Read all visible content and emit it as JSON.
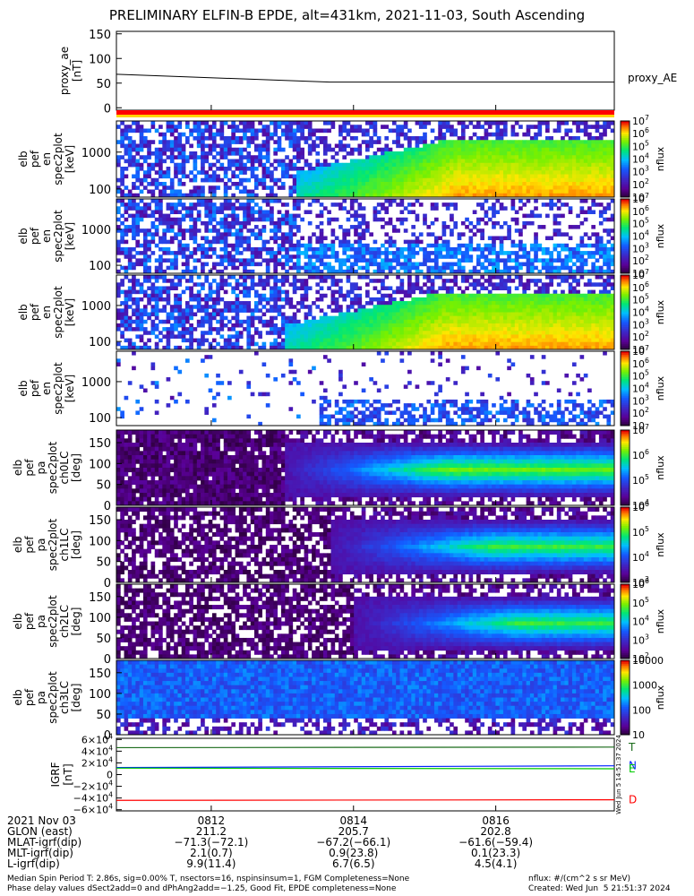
{
  "title": "PRELIMINARY ELFIN-B EPDE, alt=431km, 2021-11-03, South Ascending",
  "colors": {
    "axis": "#000000",
    "bar_red": "#ff0000",
    "bar_yellow": "#ffd400",
    "igrf_T": "#1a6b1a",
    "igrf_N": "#0022ff",
    "igrf_E": "#00cc00",
    "igrf_D": "#ff0000"
  },
  "time_axis": {
    "start": "08:10:40",
    "end": "08:17:40",
    "ticks": [
      "0812",
      "0814",
      "0816"
    ],
    "tick_times": [
      "08:12",
      "08:14",
      "08:16"
    ]
  },
  "chart_data": [
    {
      "type": "line",
      "panel": "proxy_ae",
      "ylabel": [
        "proxy_ae",
        "[nT]"
      ],
      "yticks": [
        "150",
        "100",
        "50",
        "0"
      ],
      "ylim": [
        -5,
        155
      ],
      "series": [
        {
          "name": "proxy_AE",
          "x": [
            "08:10:40",
            "08:13:40",
            "08:17:40"
          ],
          "y": [
            68,
            52,
            52
          ]
        }
      ]
    },
    {
      "type": "heatmap",
      "panel": "elb pef en spec2plot",
      "ylabel": [
        "elb",
        "pef",
        "en",
        "spec2plot",
        "[keV]"
      ],
      "yscale": "log",
      "ylim": [
        60,
        7000
      ],
      "yticks": [
        "1000",
        "100"
      ],
      "colorbar": {
        "label": "nflux",
        "range": [
          10,
          10000000
        ],
        "ticks": [
          "10",
          "10^2",
          "10^3",
          "10^4",
          "10^5",
          "10^6",
          "10^7"
        ]
      },
      "onset": "08:13:10",
      "profile": "full"
    },
    {
      "type": "heatmap",
      "panel": "elb pef en spec2plot (2)",
      "ylabel": [
        "elb",
        "pef",
        "en",
        "spec2plot",
        "[keV]"
      ],
      "yscale": "log",
      "ylim": [
        60,
        7000
      ],
      "yticks": [
        "1000",
        "100"
      ],
      "colorbar": {
        "label": "nflux",
        "range": [
          10,
          10000000
        ],
        "ticks": [
          "10",
          "10^2",
          "10^3",
          "10^4",
          "10^5",
          "10^6",
          "10^7"
        ]
      },
      "onset": "08:13:10",
      "profile": "weak"
    },
    {
      "type": "heatmap",
      "panel": "elb pef en spec2plot (3)",
      "ylabel": [
        "elb",
        "pef",
        "en",
        "spec2plot",
        "[keV]"
      ],
      "yscale": "log",
      "ylim": [
        60,
        7000
      ],
      "yticks": [
        "1000",
        "100"
      ],
      "colorbar": {
        "label": "nflux",
        "range": [
          10,
          10000000
        ],
        "ticks": [
          "10",
          "10^2",
          "10^3",
          "10^4",
          "10^5",
          "10^6",
          "10^7"
        ]
      },
      "onset": "08:13:00",
      "profile": "full"
    },
    {
      "type": "heatmap",
      "panel": "elb pef en spec2plot (4)",
      "ylabel": [
        "elb",
        "pef",
        "en",
        "spec2plot",
        "[keV]"
      ],
      "yscale": "log",
      "ylim": [
        60,
        7000
      ],
      "yticks": [
        "1000",
        "100"
      ],
      "colorbar": {
        "label": "nflux",
        "range": [
          10,
          10000000
        ],
        "ticks": [
          "10",
          "10^2",
          "10^3",
          "10^4",
          "10^5",
          "10^6",
          "10^7"
        ]
      },
      "onset": "08:13:30",
      "profile": "sparse"
    },
    {
      "type": "heatmap",
      "panel": "elb pef pa spec2plot ch0LC",
      "ylabel": [
        "elb",
        "pef",
        "pa",
        "spec2plot",
        "ch0LC",
        "[deg]"
      ],
      "ylim": [
        0,
        180
      ],
      "yticks": [
        "150",
        "100",
        "50",
        "0"
      ],
      "colorbar": {
        "label": "nflux",
        "range": [
          10000,
          10000000
        ],
        "ticks": [
          "10^4",
          "10^5",
          "10^6",
          "10^7"
        ]
      },
      "onset": "08:13:00",
      "profile": "pa_strong"
    },
    {
      "type": "heatmap",
      "panel": "elb pef pa spec2plot ch1LC",
      "ylabel": [
        "elb",
        "pef",
        "pa",
        "spec2plot",
        "ch1LC",
        "[deg]"
      ],
      "ylim": [
        0,
        180
      ],
      "yticks": [
        "150",
        "100",
        "50",
        "0"
      ],
      "colorbar": {
        "label": "nflux",
        "range": [
          1000,
          1000000
        ],
        "ticks": [
          "10^3",
          "10^4",
          "10^5",
          "10^6"
        ]
      },
      "onset": "08:13:40",
      "profile": "pa_mid"
    },
    {
      "type": "heatmap",
      "panel": "elb pef pa spec2plot ch2LC",
      "ylabel": [
        "elb",
        "pef",
        "pa",
        "spec2plot",
        "ch2LC",
        "[deg]"
      ],
      "ylim": [
        0,
        180
      ],
      "yticks": [
        "150",
        "100",
        "50",
        "0"
      ],
      "colorbar": {
        "label": "nflux",
        "range": [
          100,
          1000000
        ],
        "ticks": [
          "10^2",
          "10^3",
          "10^4",
          "10^5",
          "10^6"
        ]
      },
      "onset": "08:14:00",
      "profile": "pa_mid"
    },
    {
      "type": "heatmap",
      "panel": "elb pef pa spec2plot ch3LC",
      "ylabel": [
        "elb",
        "pef",
        "pa",
        "spec2plot",
        "ch3LC",
        "[deg]"
      ],
      "ylim": [
        0,
        180
      ],
      "yticks": [
        "150",
        "100",
        "50",
        "0"
      ],
      "colorbar": {
        "label": "nflux",
        "range": [
          10,
          10000
        ],
        "ticks": [
          "10",
          "100",
          "1000",
          "10000"
        ]
      },
      "onset": "08:10:40",
      "profile": "pa_low"
    },
    {
      "type": "line",
      "panel": "IGRF",
      "ylabel": [
        "IGRF",
        "[nT]"
      ],
      "ylim": [
        -62000,
        62000
      ],
      "yticks": [
        "6×10^4",
        "4×10^4",
        "2×10^4",
        "0",
        "−2×10^4",
        "−4×10^4",
        "−6×10^4"
      ],
      "series": [
        {
          "name": "T",
          "x": [
            "08:10:40",
            "08:17:40"
          ],
          "y": [
            46000,
            47000
          ]
        },
        {
          "name": "N",
          "x": [
            "08:10:40",
            "08:17:40"
          ],
          "y": [
            12000,
            15000
          ]
        },
        {
          "name": "E",
          "x": [
            "08:10:40",
            "08:17:40"
          ],
          "y": [
            11000,
            10000
          ]
        },
        {
          "name": "D",
          "x": [
            "08:10:40",
            "08:17:40"
          ],
          "y": [
            -44000,
            -43000
          ]
        }
      ]
    }
  ],
  "side_text": "Wed Jun  5 14:51:37 2024",
  "ephem": {
    "date": "2021 Nov 03",
    "rows": [
      {
        "label": "GLON (east)",
        "values": [
          "211.2",
          "205.7",
          "202.8"
        ]
      },
      {
        "label": "MLAT-igrf(dip)",
        "values": [
          "−71.3(−72.1)",
          "−67.2(−66.1)",
          "−61.6(−59.4)"
        ]
      },
      {
        "label": "MLT-igrf(dip)",
        "values": [
          "2.1(0.7)",
          "0.9(23.8)",
          "0.1(23.3)"
        ]
      },
      {
        "label": "L-igrf(dip)",
        "values": [
          "9.9(11.4)",
          "6.7(6.5)",
          "4.5(4.1)"
        ]
      }
    ]
  },
  "footer": {
    "line1": "Median Spin Period T: 2.86s, sig=0.00% T, nsectors=16, nspinsinsum=1, FGM Completeness=None",
    "line2": "Phase delay values dSect2add=0 and dPhAng2add=−1.25, Good Fit, EPDE completeness=None",
    "units": "nflux: #/(cm^2 s sr MeV)",
    "created": "Created: Wed Jun  5 21:51:37 2024"
  }
}
